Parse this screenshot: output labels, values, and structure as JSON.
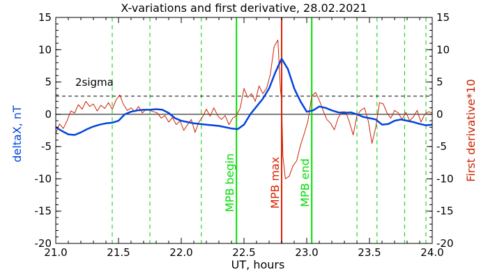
{
  "chart_data": {
    "type": "line",
    "title": "X-variations and first derivative, 28.02.2021",
    "xlabel": "UT, hours",
    "ylabel_left": "deltaX, nT",
    "ylabel_right": "First derivative*10",
    "xlim": [
      21.0,
      24.0
    ],
    "ylim": [
      -20,
      15
    ],
    "x_ticks": [
      21.0,
      21.5,
      22.0,
      22.5,
      23.0,
      23.5,
      24.0
    ],
    "x_tick_labels": [
      "21.0",
      "21.5",
      "22.0",
      "22.5",
      "23.0",
      "23.5",
      "24.0"
    ],
    "y_ticks": [
      15,
      10,
      5,
      0,
      -5,
      -10,
      -15,
      -20
    ],
    "y_tick_labels": [
      "15",
      "10",
      "5",
      "0",
      "-5",
      "-10",
      "-15",
      "-20"
    ],
    "series": [
      {
        "color": "#0044dd",
        "x": [
          21.0,
          21.05,
          21.1,
          21.15,
          21.2,
          21.25,
          21.3,
          21.35,
          21.4,
          21.45,
          21.5,
          21.55,
          21.6,
          21.65,
          21.7,
          21.75,
          21.8,
          21.85,
          21.9,
          21.95,
          22.0,
          22.05,
          22.1,
          22.15,
          22.2,
          22.25,
          22.3,
          22.35,
          22.4,
          22.45,
          22.5,
          22.55,
          22.6,
          22.65,
          22.7,
          22.75,
          22.8,
          22.85,
          22.9,
          22.95,
          23.0,
          23.05,
          23.1,
          23.15,
          23.2,
          23.25,
          23.3,
          23.35,
          23.4,
          23.45,
          23.5,
          23.55,
          23.6,
          23.65,
          23.7,
          23.75,
          23.8,
          23.85,
          23.9,
          23.95,
          24.0
        ],
        "y": [
          -2.0,
          -2.6,
          -3.1,
          -3.2,
          -2.8,
          -2.3,
          -1.9,
          -1.6,
          -1.4,
          -1.3,
          -1.0,
          0.0,
          0.4,
          0.6,
          0.7,
          0.7,
          0.8,
          0.7,
          0.2,
          -0.6,
          -1.0,
          -1.2,
          -1.4,
          -1.5,
          -1.6,
          -1.7,
          -1.8,
          -2.0,
          -2.2,
          -2.3,
          -1.6,
          0.0,
          1.2,
          2.4,
          4.0,
          6.5,
          8.6,
          7.0,
          4.0,
          2.0,
          0.4,
          0.6,
          1.2,
          1.0,
          0.6,
          0.3,
          0.2,
          0.3,
          0.0,
          -0.4,
          -0.6,
          -0.8,
          -1.6,
          -1.5,
          -1.0,
          -0.8,
          -1.0,
          -1.2,
          -1.5,
          -1.7,
          -1.6
        ]
      },
      {
        "color": "#cc2200",
        "x": [
          21.0,
          21.03,
          21.06,
          21.09,
          21.12,
          21.15,
          21.18,
          21.21,
          21.24,
          21.27,
          21.3,
          21.33,
          21.36,
          21.39,
          21.42,
          21.45,
          21.48,
          21.51,
          21.54,
          21.57,
          21.6,
          21.63,
          21.66,
          21.69,
          21.72,
          21.75,
          21.78,
          21.81,
          21.84,
          21.87,
          21.9,
          21.93,
          21.96,
          21.99,
          22.02,
          22.05,
          22.08,
          22.11,
          22.14,
          22.17,
          22.2,
          22.23,
          22.26,
          22.29,
          22.32,
          22.35,
          22.38,
          22.41,
          22.44,
          22.47,
          22.5,
          22.53,
          22.56,
          22.59,
          22.62,
          22.65,
          22.68,
          22.71,
          22.74,
          22.77,
          22.79,
          22.8,
          22.81,
          22.83,
          22.86,
          22.89,
          22.92,
          22.95,
          22.98,
          23.01,
          23.04,
          23.07,
          23.1,
          23.13,
          23.16,
          23.19,
          23.22,
          23.25,
          23.28,
          23.31,
          23.34,
          23.37,
          23.4,
          23.43,
          23.46,
          23.49,
          23.52,
          23.55,
          23.58,
          23.61,
          23.64,
          23.67,
          23.7,
          23.73,
          23.76,
          23.79,
          23.82,
          23.85,
          23.88,
          23.91,
          23.94,
          23.97,
          24.0
        ],
        "y": [
          -3.0,
          -1.5,
          -2.2,
          -1.0,
          0.5,
          0.2,
          1.5,
          0.8,
          2.0,
          1.2,
          1.6,
          0.5,
          1.4,
          0.9,
          1.8,
          0.8,
          2.2,
          3.0,
          1.5,
          0.6,
          1.0,
          0.4,
          1.2,
          0.2,
          0.8,
          0.6,
          0.4,
          0.2,
          -0.6,
          -0.2,
          -1.2,
          -0.5,
          -1.6,
          -1.0,
          -2.5,
          -1.6,
          -0.8,
          -2.8,
          -1.2,
          -0.4,
          0.8,
          -0.3,
          1.0,
          -0.2,
          -0.8,
          -0.2,
          -1.6,
          -0.6,
          -0.2,
          1.0,
          4.0,
          2.6,
          3.2,
          2.0,
          4.4,
          3.2,
          4.0,
          6.2,
          10.5,
          11.5,
          4.0,
          2.0,
          -6.5,
          -10.0,
          -9.6,
          -8.0,
          -7.2,
          -4.8,
          -3.0,
          -1.0,
          2.8,
          3.4,
          2.2,
          0.6,
          -0.8,
          -1.4,
          -2.4,
          -0.6,
          0.4,
          0.4,
          -1.2,
          -3.2,
          -0.2,
          0.6,
          1.0,
          -1.0,
          -4.5,
          -2.0,
          1.8,
          1.6,
          0.2,
          -0.6,
          0.6,
          0.2,
          -0.8,
          0.3,
          -1.0,
          -0.4,
          0.6,
          -1.2,
          0.0,
          0.4,
          0.2
        ]
      }
    ],
    "threshold": {
      "label": "2sigma",
      "y": 2.8
    },
    "zero_line_y": 0,
    "vertical_dashed_x": [
      21.45,
      21.75,
      22.16,
      23.4,
      23.56,
      23.78,
      23.95
    ],
    "events": [
      {
        "label": "MPB begin",
        "x": 22.44,
        "color": "#00dd00"
      },
      {
        "label": "MPB max",
        "x": 22.8,
        "color": "#dd2200"
      },
      {
        "label": "MPB end",
        "x": 23.04,
        "color": "#00dd00"
      }
    ]
  }
}
